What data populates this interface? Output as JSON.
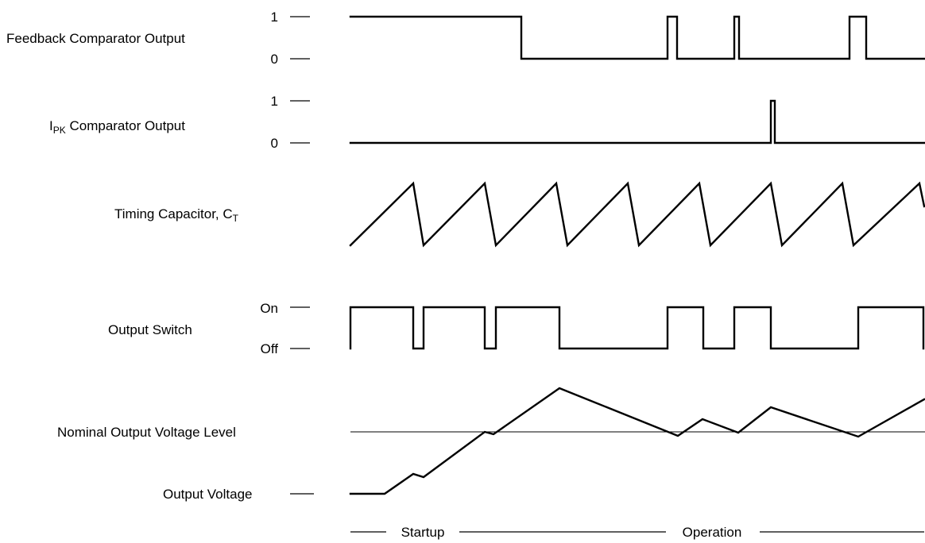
{
  "signals": {
    "feedback": {
      "label": "Feedback Comparator Output",
      "level_high": "1",
      "level_low": "0"
    },
    "ipk": {
      "label_main": "I",
      "label_sub": "PK",
      "label_rest": " Comparator Output",
      "level_high": "1",
      "level_low": "0"
    },
    "timing_cap": {
      "label_main": "Timing Capacitor, C",
      "label_sub": "T"
    },
    "output_switch": {
      "label": "Output Switch",
      "level_high": "On",
      "level_low": "Off"
    },
    "nominal": {
      "label": "Nominal Output Voltage Level"
    },
    "output_voltage": {
      "label": "Output Voltage"
    }
  },
  "phases": {
    "startup": "Startup",
    "operation": "Operation"
  }
}
